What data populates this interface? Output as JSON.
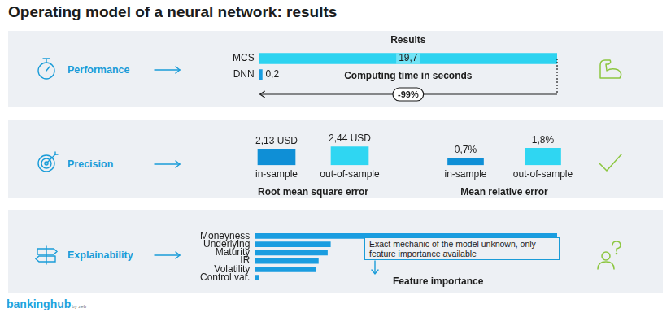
{
  "title": "Operating model of a neural network: results",
  "footer": {
    "brand": "bankinghub",
    "by": "by zeb"
  },
  "panels": [
    "Performance",
    "Precision",
    "Explainability"
  ],
  "chart_data": [
    {
      "type": "bar",
      "orientation": "horizontal",
      "subtitle": "Results",
      "title": "Computing time in seconds",
      "categories": [
        "MCS",
        "DNN"
      ],
      "values": [
        19.7,
        0.2
      ],
      "value_labels": [
        "19,7",
        "0,2"
      ],
      "data_labels": true,
      "colors": [
        "#2dd3f0",
        "#1a9de0"
      ],
      "xlim": [
        0,
        19.7
      ],
      "tick_labels": "y",
      "grid": false,
      "annotations": [
        "-99%"
      ]
    },
    {
      "type": "bar",
      "title": "Root mean square error",
      "categories": [
        "in-sample",
        "out-of-sample"
      ],
      "values": [
        2.13,
        2.44
      ],
      "value_labels": [
        "2,13 USD",
        "2,44 USD"
      ],
      "data_labels": true,
      "colors": [
        "#0f8fd6",
        "#2fd6f2"
      ],
      "ylim": [
        0,
        2.5
      ],
      "tick_labels": "x",
      "grid": false
    },
    {
      "type": "bar",
      "title": "Mean relative error",
      "categories": [
        "in-sample",
        "out-of-sample"
      ],
      "values": [
        0.7,
        1.8
      ],
      "value_labels": [
        "0,7%",
        "1,8%"
      ],
      "data_labels": true,
      "colors": [
        "#0f8fd6",
        "#2fd6f2"
      ],
      "ylim": [
        0,
        2
      ],
      "tick_labels": "x",
      "grid": false
    },
    {
      "type": "bar",
      "orientation": "horizontal",
      "title": "Feature importance",
      "categories": [
        "Moneyness",
        "Underlying",
        "Maturity",
        "IR",
        "Volatility",
        "Control var."
      ],
      "values": [
        100,
        25,
        24,
        21,
        20,
        1.4
      ],
      "color": "#1a9de0",
      "xlim": [
        0,
        100
      ],
      "tick_labels": "y",
      "grid": false,
      "annotations": [
        "Exact mechanic of the model unknown, only feature importance available"
      ]
    }
  ]
}
